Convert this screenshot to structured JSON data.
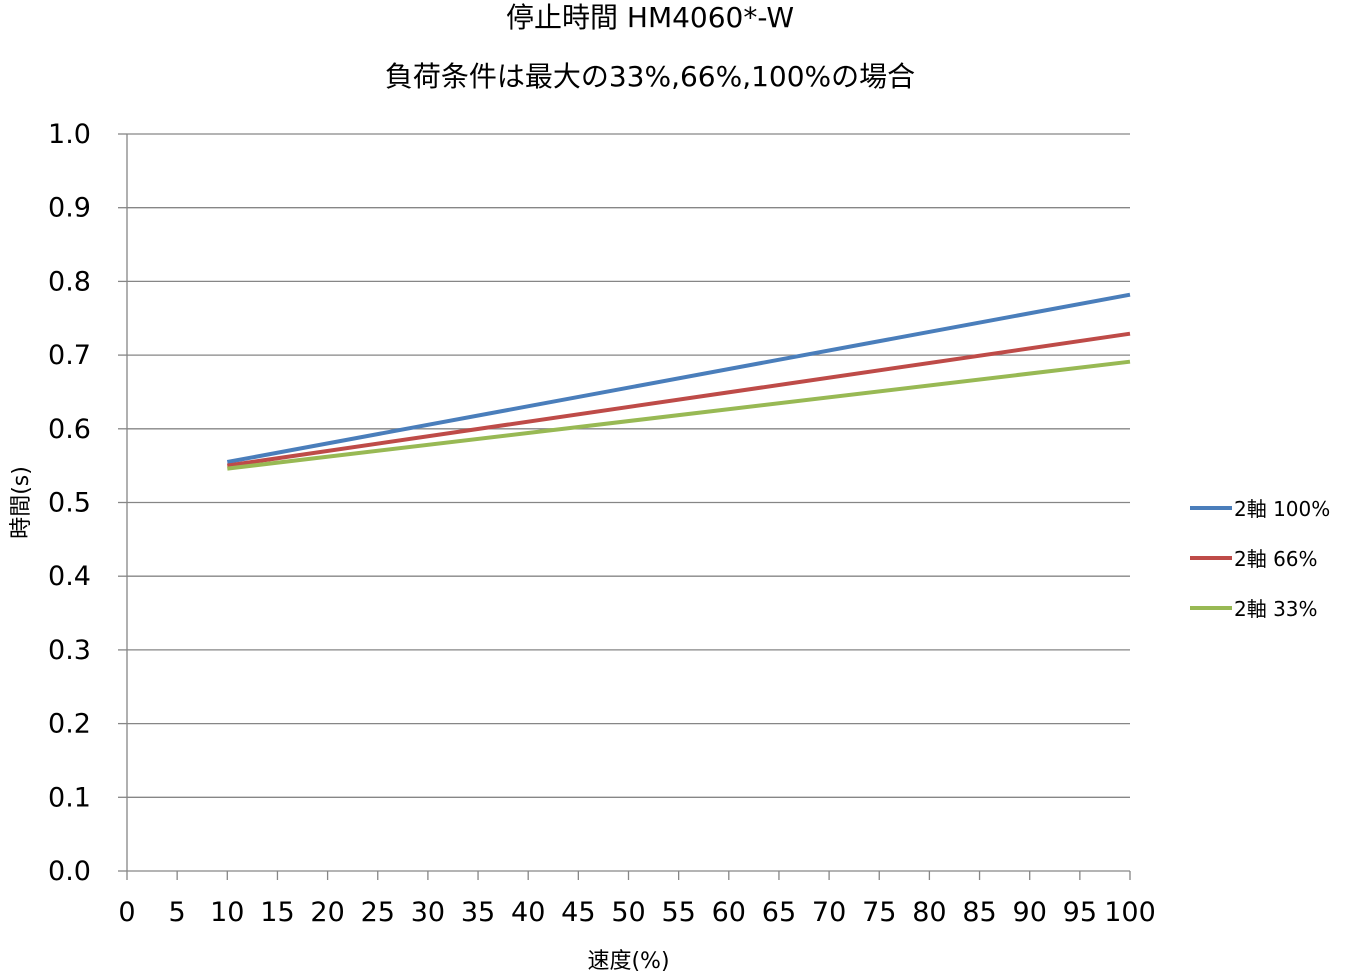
{
  "chart_data": {
    "type": "line",
    "title": "停止時間 HM4060*-W",
    "subtitle": "負荷条件は最大の33%,66%,100%の場合",
    "xlabel": "速度(%)",
    "ylabel": "時間(s)",
    "xlim": [
      0,
      100
    ],
    "ylim": [
      0.0,
      1.0
    ],
    "x_ticks": [
      "0",
      "5",
      "10",
      "15",
      "20",
      "25",
      "30",
      "35",
      "40",
      "45",
      "50",
      "55",
      "60",
      "65",
      "70",
      "75",
      "80",
      "85",
      "90",
      "95",
      "100"
    ],
    "y_ticks": [
      "0.0",
      "0.1",
      "0.2",
      "0.3",
      "0.4",
      "0.5",
      "0.6",
      "0.7",
      "0.8",
      "0.9",
      "1.0"
    ],
    "grid": "horizontal",
    "legend_position": "right",
    "series": [
      {
        "name": "2軸 100%",
        "color": "#4A7EBB",
        "x": [
          10,
          100
        ],
        "y": [
          0.555,
          0.782
        ]
      },
      {
        "name": "2軸 66%",
        "color": "#BE4B48",
        "x": [
          10,
          100
        ],
        "y": [
          0.55,
          0.729
        ]
      },
      {
        "name": "2軸 33%",
        "color": "#98B954",
        "x": [
          10,
          100
        ],
        "y": [
          0.546,
          0.691
        ]
      }
    ]
  }
}
